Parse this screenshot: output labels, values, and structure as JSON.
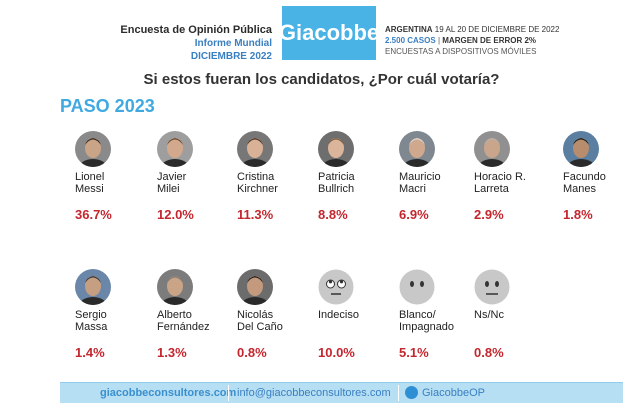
{
  "header": {
    "left_line1": "Encuesta de Opinión Pública",
    "left_line2": "Informe Mundial",
    "left_line3": "DICIEMBRE 2022",
    "brand": "Giacobbe",
    "right_line1_bold": "ARGENTINA",
    "right_line1_rest": "19 AL 20 DE DICIEMBRE DE 2022",
    "right_line2_cases": "2.500 CASOS",
    "right_line2_sep": "|",
    "right_line2_margin": "MARGEN DE ERROR 2%",
    "right_line3": "ENCUESTAS A DISPOSITIVOS MÓVILES"
  },
  "question": "Si estos fueran los candidatos, ¿Por cuál votaría?",
  "section_title": "PASO 2023",
  "candidates": [
    {
      "line1": "Lionel",
      "line2": "Messi",
      "percent": "36.7%",
      "avatar": "person-photo"
    },
    {
      "line1": "Javier",
      "line2": "Milei",
      "percent": "12.0%",
      "avatar": "person-photo"
    },
    {
      "line1": "Cristina",
      "line2": "Kirchner",
      "percent": "11.3%",
      "avatar": "person-photo"
    },
    {
      "line1": "Patricia",
      "line2": "Bullrich",
      "percent": "8.8%",
      "avatar": "person-photo"
    },
    {
      "line1": "Mauricio",
      "line2": "Macri",
      "percent": "6.9%",
      "avatar": "person-photo"
    },
    {
      "line1": "Horacio R.",
      "line2": "Larreta",
      "percent": "2.9%",
      "avatar": "person-photo"
    },
    {
      "line1": "Facundo",
      "line2": "Manes",
      "percent": "1.8%",
      "avatar": "person-photo"
    },
    {
      "line1": "Sergio",
      "line2": "Massa",
      "percent": "1.4%",
      "avatar": "person-photo"
    },
    {
      "line1": "Alberto",
      "line2": "Fernández",
      "percent": "1.3%",
      "avatar": "person-photo"
    },
    {
      "line1": "Nicolás",
      "line2": "Del Caño",
      "percent": "0.8%",
      "avatar": "person-photo"
    },
    {
      "line1": "Indeciso",
      "line2": "",
      "percent": "10.0%",
      "avatar": "rolling-eyes-face-icon"
    },
    {
      "line1": "Blanco/",
      "line2": "Impagnado",
      "percent": "5.1%",
      "avatar": "blank-face-icon"
    },
    {
      "line1": "Ns/Nc",
      "line2": "",
      "percent": "0.8%",
      "avatar": "neutral-face-icon"
    }
  ],
  "footer": {
    "website": "giacobbeconsultores.com",
    "email": "info@giacobbeconsultores.com",
    "twitter": "GiacobbeOP"
  },
  "colors": {
    "brand": "#49b3e6",
    "percent": "#c4262e",
    "title": "#3fa9e0",
    "footer": "#b6dff3"
  }
}
